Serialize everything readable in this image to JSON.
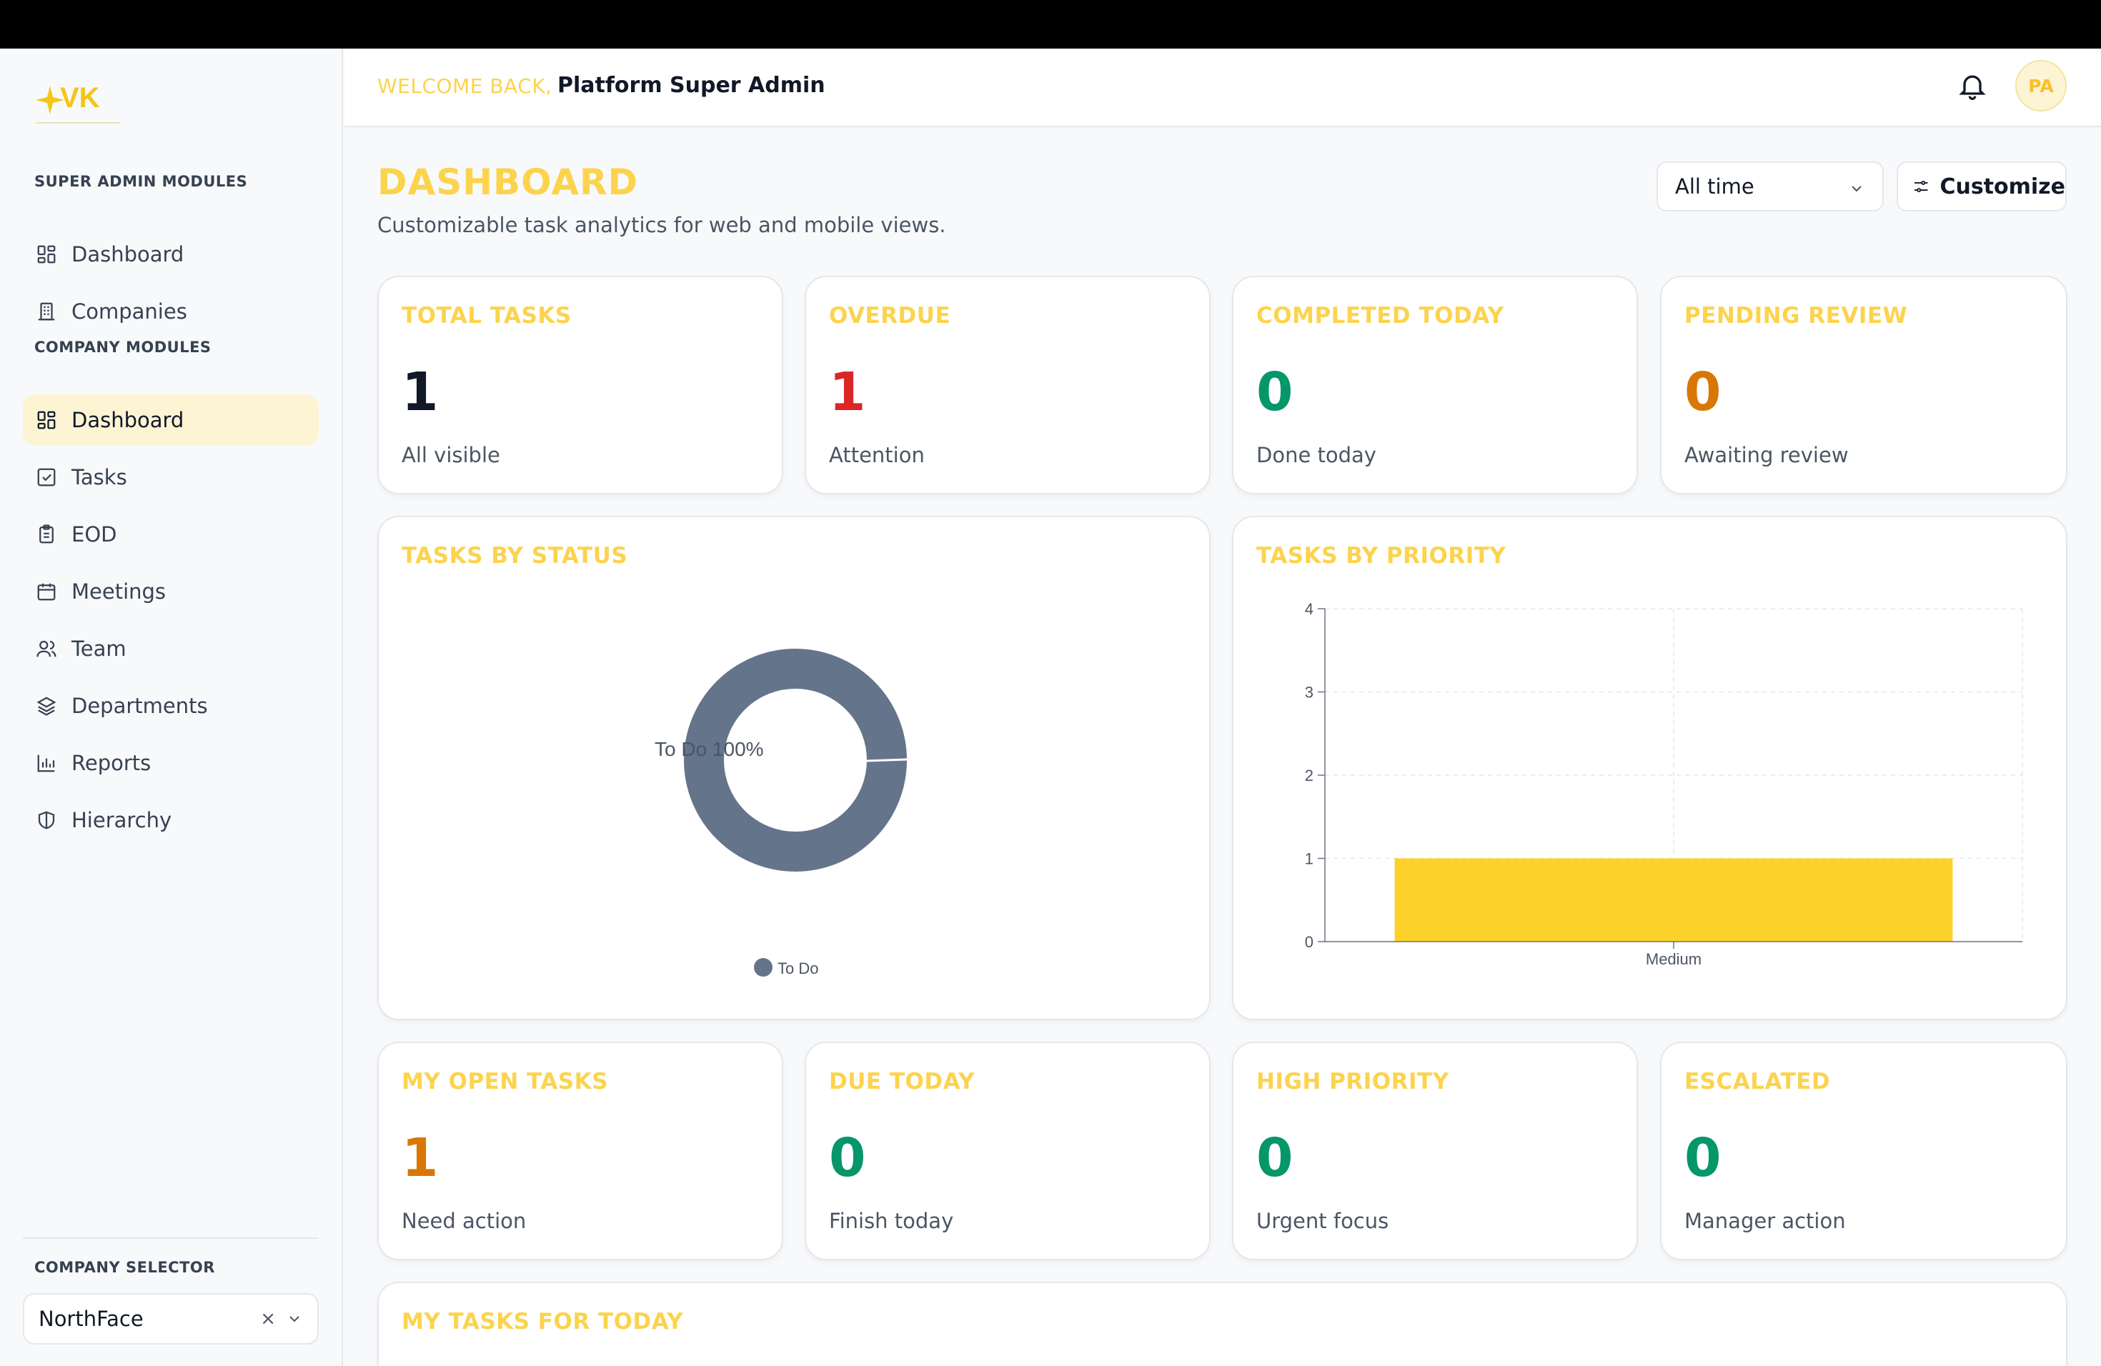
{
  "sidebar": {
    "super_admin_label": "SUPER ADMIN MODULES",
    "super_admin_items": [
      {
        "label": "Dashboard",
        "icon": "grid-icon"
      },
      {
        "label": "Companies",
        "icon": "building-icon"
      }
    ],
    "company_label": "COMPANY MODULES",
    "company_items": [
      {
        "label": "Dashboard",
        "icon": "grid-icon",
        "active": true
      },
      {
        "label": "Tasks",
        "icon": "checkbox-icon"
      },
      {
        "label": "EOD",
        "icon": "clipboard-icon"
      },
      {
        "label": "Meetings",
        "icon": "calendar-icon"
      },
      {
        "label": "Team",
        "icon": "users-icon"
      },
      {
        "label": "Departments",
        "icon": "layers-icon"
      },
      {
        "label": "Reports",
        "icon": "bar-chart-icon"
      },
      {
        "label": "Hierarchy",
        "icon": "shield-icon"
      }
    ],
    "company_selector_label": "COMPANY SELECTOR",
    "company_selected": "NorthFace",
    "company_clear": "×"
  },
  "header": {
    "welcome": "WELCOME BACK,",
    "user_name": "Platform Super Admin",
    "avatar_initials": "PA"
  },
  "main": {
    "title": "DASHBOARD",
    "subtitle": "Customizable task analytics for web and mobile views.",
    "time_filter": "All time",
    "customize_label": "Customize"
  },
  "stats_top": [
    {
      "title": "TOTAL TASKS",
      "value": "1",
      "sub": "All visible",
      "color": "#111827"
    },
    {
      "title": "OVERDUE",
      "value": "1",
      "sub": "Attention",
      "color": "#dc2626"
    },
    {
      "title": "COMPLETED TODAY",
      "value": "0",
      "sub": "Done today",
      "color": "#059669"
    },
    {
      "title": "PENDING REVIEW",
      "value": "0",
      "sub": "Awaiting review",
      "color": "#d97706"
    }
  ],
  "stats_bottom": [
    {
      "title": "MY OPEN TASKS",
      "value": "1",
      "sub": "Need action",
      "color": "#d97706"
    },
    {
      "title": "DUE TODAY",
      "value": "0",
      "sub": "Finish today",
      "color": "#059669"
    },
    {
      "title": "HIGH PRIORITY",
      "value": "0",
      "sub": "Urgent focus",
      "color": "#059669"
    },
    {
      "title": "ESCALATED",
      "value": "0",
      "sub": "Manager action",
      "color": "#059669"
    }
  ],
  "status_card": {
    "title": "TASKS BY STATUS"
  },
  "priority_card": {
    "title": "TASKS BY PRIORITY"
  },
  "today_card": {
    "title": "MY TASKS FOR TODAY"
  },
  "chart_data": [
    {
      "type": "pie",
      "categories": [
        "To Do"
      ],
      "values": [
        100
      ],
      "slice_label": "To Do 100%",
      "legend": [
        "To Do"
      ],
      "colors": [
        "#64748b"
      ]
    },
    {
      "type": "bar",
      "categories": [
        "Medium"
      ],
      "values": [
        1
      ],
      "ylim": [
        0,
        4
      ],
      "yticks": [
        "0",
        "1",
        "2",
        "3",
        "4"
      ],
      "grid": true,
      "colors": [
        "#fcd12a"
      ]
    }
  ]
}
